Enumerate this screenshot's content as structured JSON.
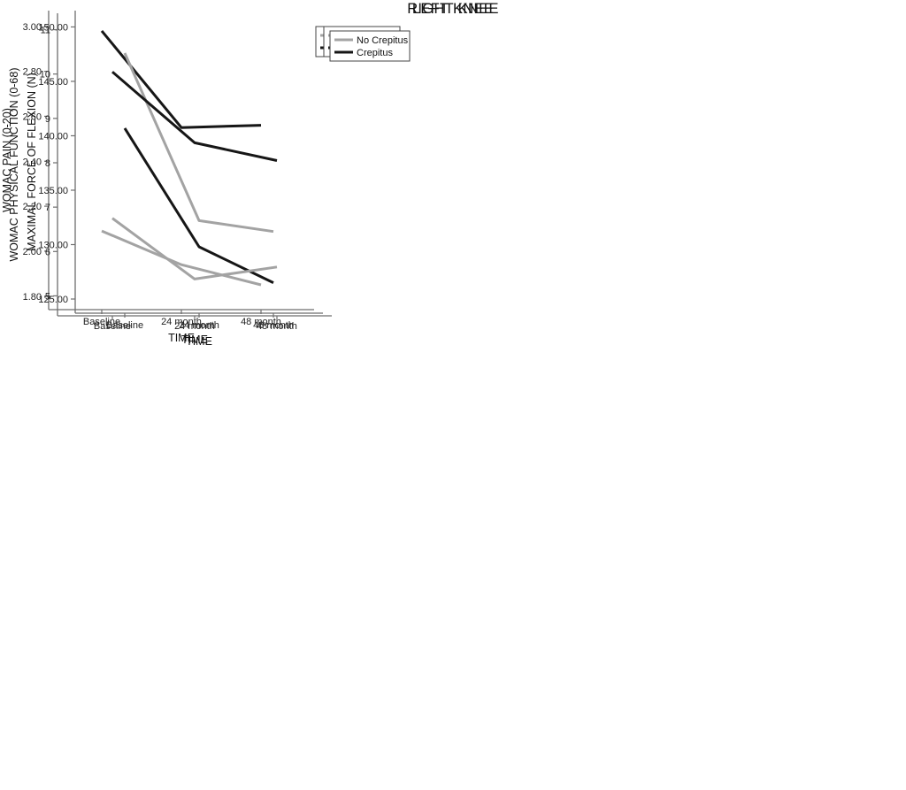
{
  "titles": {
    "right_knee": "RIGHT KNEE",
    "left_knee": "LEFT KNEE"
  },
  "colors": {
    "no_crepitus": "#a3a3a3",
    "crepitus": "#161616",
    "axis": "#6e6e6e",
    "legend_border": "#444444",
    "background": "#ffffff"
  },
  "chart_data": [
    {
      "type": "line",
      "group": "RIGHT KNEE",
      "title": "",
      "xlabel": "TIME",
      "ylabel": "WOMAC PAIN (0-20)",
      "categories": [
        "Baseline",
        "24 month",
        "48 month"
      ],
      "yticks": [
        1.8,
        2.0,
        2.2,
        2.4,
        2.6,
        2.8,
        3.0
      ],
      "ytick_labels": [
        "1.80",
        "2.00",
        "2.20",
        "2.40",
        "2.60",
        "2.80",
        "3.00"
      ],
      "ylim": [
        1.74,
        3.07
      ],
      "grid": false,
      "legend_position": "top-right-outside",
      "series": [
        {
          "name": "No Crepitus",
          "color": "#a3a3a3",
          "values": [
            2.09,
            1.94,
            1.85
          ]
        },
        {
          "name": "Crepitus",
          "color": "#161616",
          "values": [
            2.98,
            2.55,
            2.56
          ]
        }
      ]
    },
    {
      "type": "line",
      "group": "RIGHT KNEE",
      "title": "",
      "xlabel": "TIME",
      "ylabel": "MAXIMAL FORCE OF FLEXION (N)",
      "categories": [
        "Baseline",
        "24 month",
        "48 month"
      ],
      "yticks": [
        125,
        130,
        135,
        140,
        145,
        150
      ],
      "ytick_labels": [
        "125.00",
        "130.00",
        "135.00",
        "140.00",
        "145.00",
        "150.00"
      ],
      "ylim": [
        123.7,
        151.5
      ],
      "grid": false,
      "legend_position": "top-right-outside",
      "series": [
        {
          "name": "No Crepitus",
          "color": "#a3a3a3",
          "values": [
            147.6,
            132.2,
            131.2
          ]
        },
        {
          "name": "Crepitus",
          "color": "#161616",
          "values": [
            140.7,
            129.8,
            126.5
          ]
        }
      ]
    },
    {
      "type": "line",
      "group": "LEFT KNEE",
      "title": "",
      "xlabel": "TIME",
      "ylabel": "WOMAC PHYSICAL FUNCTION (0-68)",
      "categories": [
        "Baseline",
        "24 month",
        "48 month"
      ],
      "yticks": [
        5,
        6,
        7,
        8,
        9,
        10,
        11
      ],
      "ytick_labels": [
        "5",
        "6",
        "7",
        "8",
        "9",
        "10",
        "11"
      ],
      "ylim": [
        4.55,
        11.37
      ],
      "grid": false,
      "legend_position": "top-right-outside",
      "series": [
        {
          "name": "No Crepitus",
          "color": "#a3a3a3",
          "values": [
            6.75,
            5.38,
            5.65
          ]
        },
        {
          "name": "Crepitus",
          "color": "#161616",
          "values": [
            10.05,
            8.45,
            8.05
          ]
        }
      ]
    }
  ]
}
